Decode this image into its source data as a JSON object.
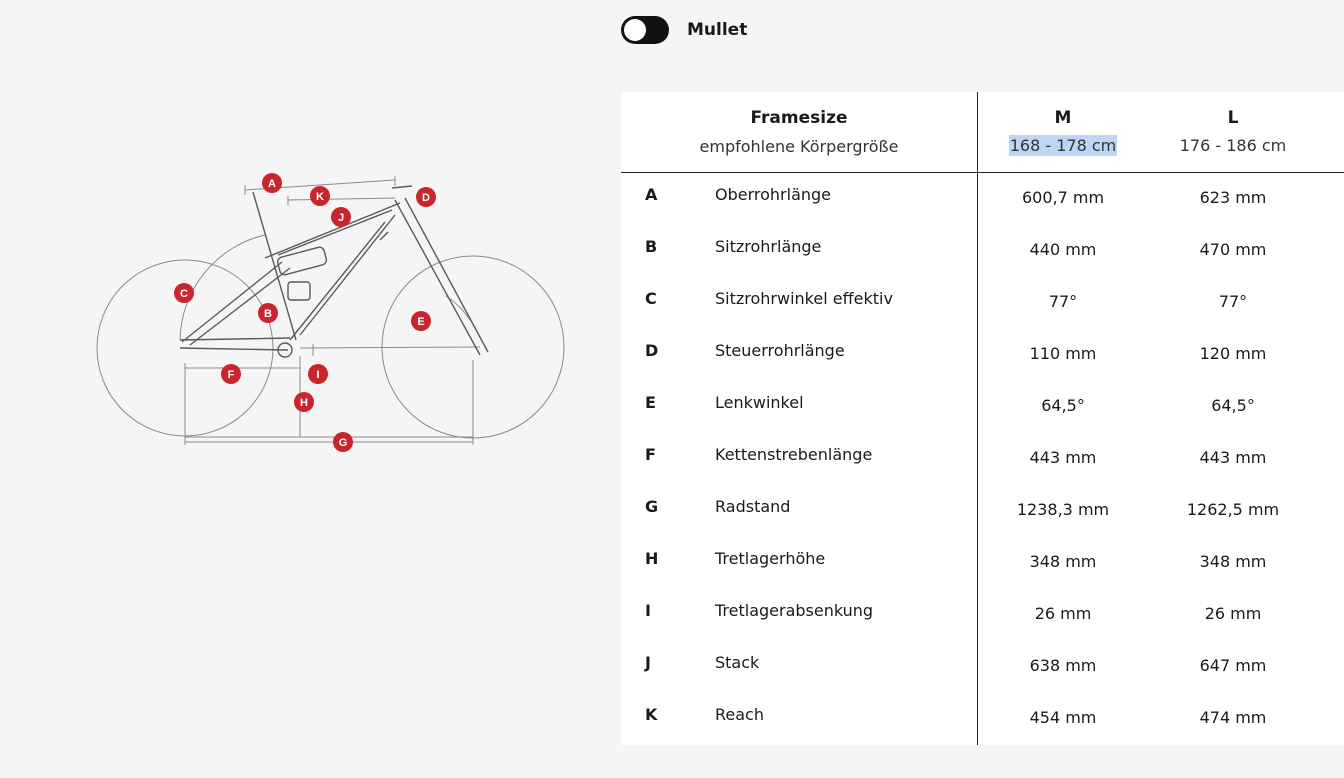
{
  "toggle": {
    "label": "Mullet",
    "state": "off"
  },
  "diagram": {
    "markers": [
      "A",
      "B",
      "C",
      "D",
      "E",
      "F",
      "G",
      "H",
      "I",
      "J",
      "K"
    ],
    "marker_color": "#c8262c"
  },
  "table": {
    "header": {
      "framesize_label": "Framesize",
      "height_label": "empfohlene Körpergröße",
      "sizes": [
        {
          "name": "M",
          "range": "168 - 178 cm",
          "selected": true
        },
        {
          "name": "L",
          "range": "176 - 186 cm",
          "selected": false
        }
      ]
    },
    "rows": [
      {
        "letter": "A",
        "name": "Oberrohrlänge",
        "m": "600,7 mm",
        "l": "623 mm"
      },
      {
        "letter": "B",
        "name": "Sitzrohrlänge",
        "m": "440 mm",
        "l": "470 mm"
      },
      {
        "letter": "C",
        "name": "Sitzrohrwinkel effektiv",
        "m": "77°",
        "l": "77°"
      },
      {
        "letter": "D",
        "name": "Steuerrohrlänge",
        "m": "110 mm",
        "l": "120 mm"
      },
      {
        "letter": "E",
        "name": "Lenkwinkel",
        "m": "64,5°",
        "l": "64,5°"
      },
      {
        "letter": "F",
        "name": "Kettenstrebenlänge",
        "m": "443 mm",
        "l": "443 mm"
      },
      {
        "letter": "G",
        "name": "Radstand",
        "m": "1238,3 mm",
        "l": "1262,5 mm"
      },
      {
        "letter": "H",
        "name": "Tretlagerhöhe",
        "m": "348 mm",
        "l": "348 mm"
      },
      {
        "letter": "I",
        "name": "Tretlagerabsenkung",
        "m": "26 mm",
        "l": "26 mm"
      },
      {
        "letter": "J",
        "name": "Stack",
        "m": "638 mm",
        "l": "647 mm"
      },
      {
        "letter": "K",
        "name": "Reach",
        "m": "454 mm",
        "l": "474 mm"
      }
    ]
  }
}
